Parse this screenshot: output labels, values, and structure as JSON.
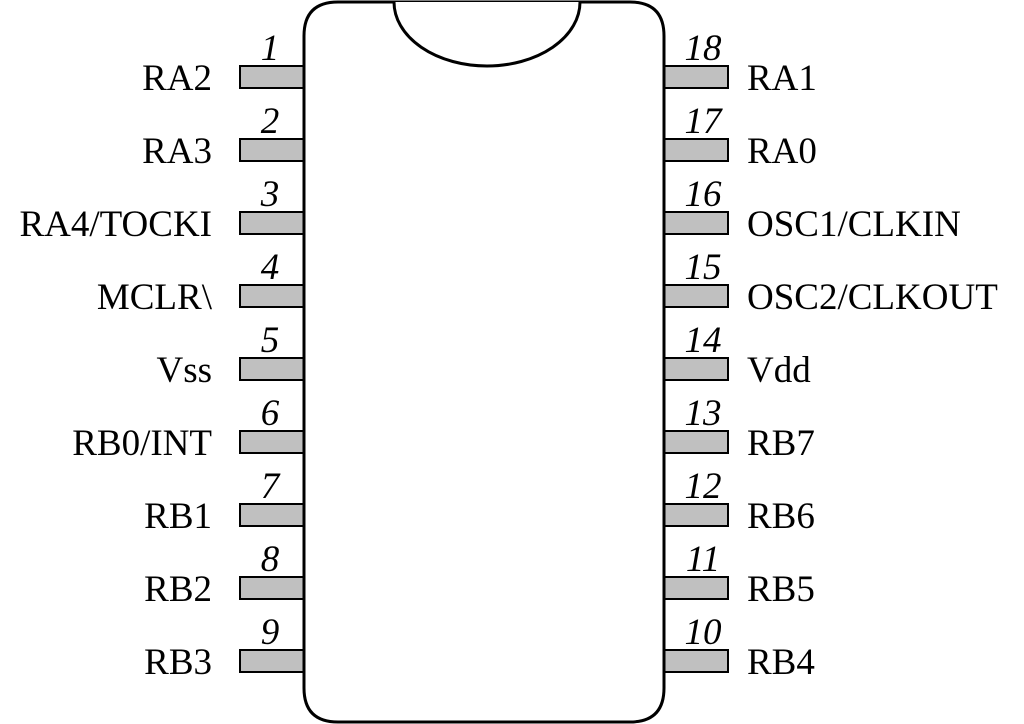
{
  "chip": {
    "body_fill": "#ffffff",
    "pin_fill": "#c0c0c0",
    "stroke": "#000000"
  },
  "left_pins": [
    {
      "number": "1",
      "label": "RA2"
    },
    {
      "number": "2",
      "label": "RA3"
    },
    {
      "number": "3",
      "label": "RA4/TOCKI"
    },
    {
      "number": "4",
      "label": "MCLR\\"
    },
    {
      "number": "5",
      "label": "Vss"
    },
    {
      "number": "6",
      "label": "RB0/INT"
    },
    {
      "number": "7",
      "label": "RB1"
    },
    {
      "number": "8",
      "label": "RB2"
    },
    {
      "number": "9",
      "label": "RB3"
    }
  ],
  "right_pins": [
    {
      "number": "18",
      "label": "RA1"
    },
    {
      "number": "17",
      "label": "RA0"
    },
    {
      "number": "16",
      "label": "OSC1/CLKIN"
    },
    {
      "number": "15",
      "label": "OSC2/CLKOUT"
    },
    {
      "number": "14",
      "label": "Vdd"
    },
    {
      "number": "13",
      "label": "RB7"
    },
    {
      "number": "12",
      "label": "RB6"
    },
    {
      "number": "11",
      "label": "RB5"
    },
    {
      "number": "10",
      "label": "RB4"
    }
  ]
}
